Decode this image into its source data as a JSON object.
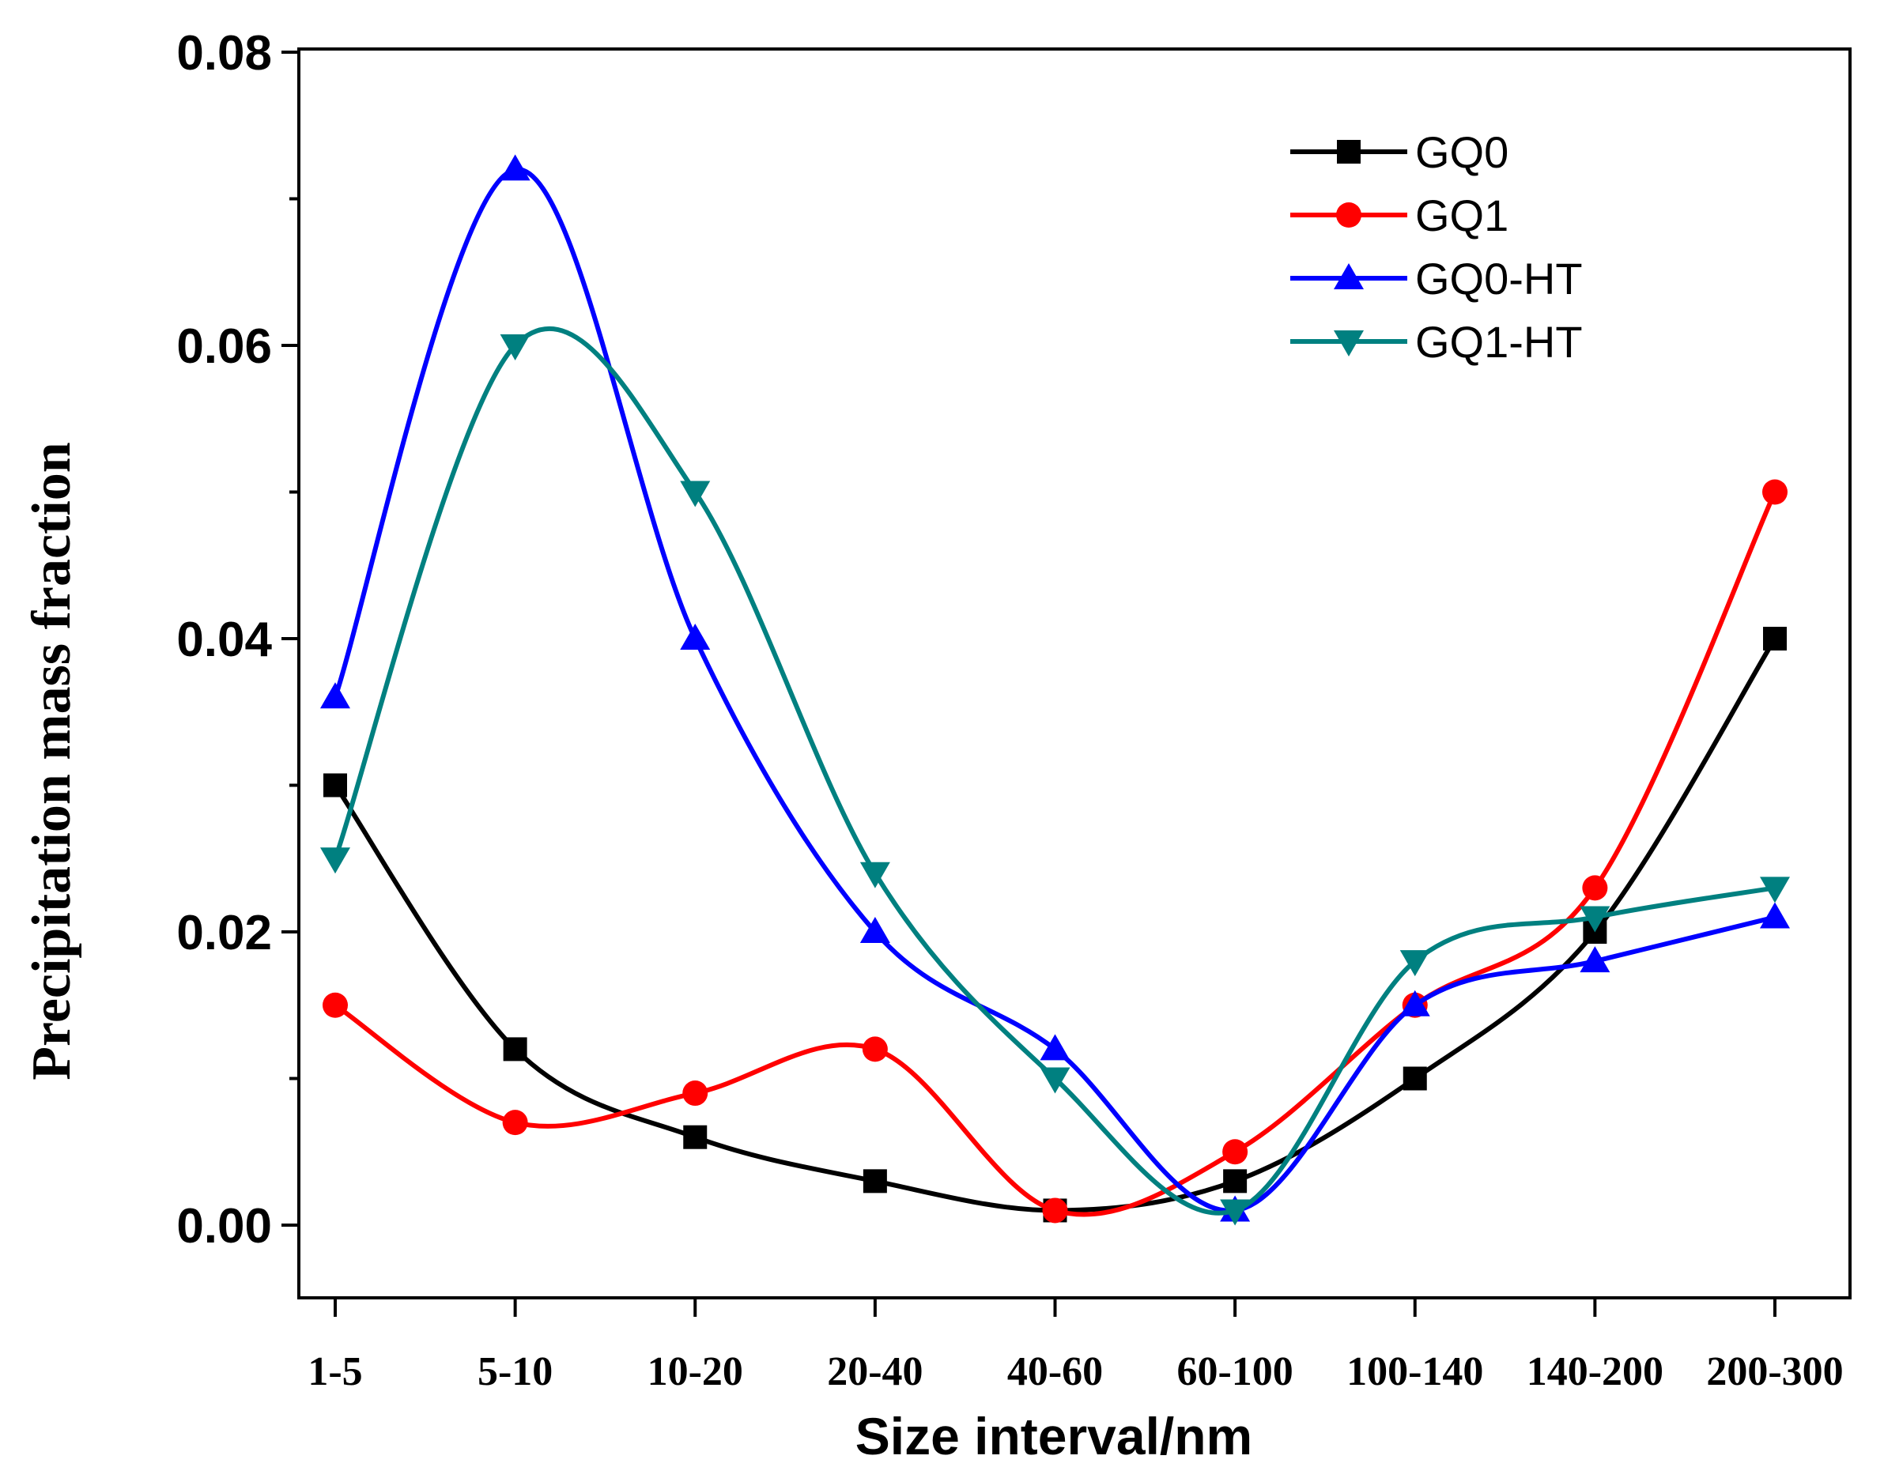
{
  "chart_data": {
    "type": "line",
    "title": "",
    "xlabel": "Size interval/nm",
    "ylabel": "Precipitation mass fraction",
    "categories": [
      "1-5",
      "5-10",
      "10-20",
      "20-40",
      "40-60",
      "60-100",
      "100-140",
      "140-200",
      "200-300"
    ],
    "ylim": [
      -0.0048,
      0.08
    ],
    "yticks": [
      "0.00",
      "0.02",
      "0.04",
      "0.06",
      "0.08"
    ],
    "grid": false,
    "legend_position": "top-right",
    "series": [
      {
        "name": "GQ0",
        "color": "#000000",
        "marker": "square",
        "values": [
          0.03,
          0.012,
          0.006,
          0.003,
          0.001,
          0.003,
          0.01,
          0.02,
          0.04
        ]
      },
      {
        "name": "GQ1",
        "color": "#ff0000",
        "marker": "circle",
        "values": [
          0.015,
          0.007,
          0.009,
          0.012,
          0.001,
          0.005,
          0.015,
          0.023,
          0.05
        ]
      },
      {
        "name": "GQ0-HT",
        "color": "#0000ff",
        "marker": "triangle-up",
        "values": [
          0.036,
          0.072,
          0.04,
          0.02,
          0.012,
          0.001,
          0.015,
          0.018,
          0.021
        ]
      },
      {
        "name": "GQ1-HT",
        "color": "#008080",
        "marker": "triangle-down",
        "values": [
          0.025,
          0.06,
          0.05,
          0.024,
          0.01,
          0.001,
          0.018,
          0.021,
          0.023
        ]
      }
    ]
  }
}
